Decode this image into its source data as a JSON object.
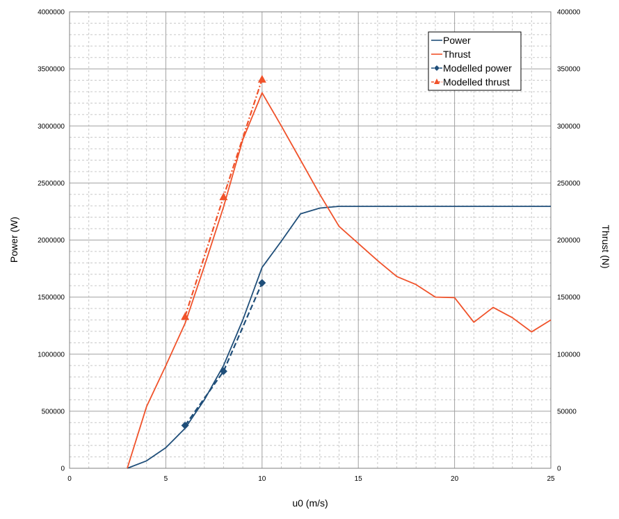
{
  "chart_data": {
    "type": "line",
    "xlabel": "u0 (m/s)",
    "ylabel_left": "Power (W)",
    "ylabel_right": "Thrust (N)",
    "xlim": [
      0,
      25
    ],
    "ylim_left": [
      0,
      4000000
    ],
    "ylim_right": [
      0,
      400000
    ],
    "x_ticks": [
      "0",
      "5",
      "10",
      "15",
      "20",
      "25"
    ],
    "y_left_ticks": [
      "0",
      "500000",
      "1000000",
      "1500000",
      "2000000",
      "2500000",
      "3000000",
      "3500000",
      "4000000"
    ],
    "y_right_ticks": [
      "0",
      "50000",
      "100000",
      "150000",
      "200000",
      "250000",
      "300000",
      "350000",
      "400000"
    ],
    "grid": true,
    "legend_position": "top-right",
    "series": [
      {
        "name": "Power",
        "axis": "left",
        "style": "solid",
        "marker": "none",
        "color": "#1f4e79",
        "x": [
          3,
          4,
          5,
          6,
          7,
          8,
          9,
          10,
          11,
          12,
          13,
          14,
          15,
          16,
          17,
          18,
          19,
          20,
          21,
          22,
          23,
          24,
          25
        ],
        "y": [
          0,
          65000,
          180000,
          350000,
          600000,
          900000,
          1300000,
          1760000,
          1990000,
          2230000,
          2280000,
          2295000,
          2295000,
          2295000,
          2295000,
          2295000,
          2295000,
          2295000,
          2295000,
          2295000,
          2295000,
          2295000,
          2295000
        ]
      },
      {
        "name": "Thrust",
        "axis": "right",
        "style": "solid",
        "marker": "none",
        "color": "#f0522a",
        "x": [
          3,
          4,
          5,
          6,
          7,
          8,
          9,
          10,
          11,
          12,
          13,
          14,
          15,
          16,
          17,
          18,
          19,
          20,
          21,
          22,
          23,
          24,
          25
        ],
        "y": [
          0,
          54000,
          90000,
          127000,
          177000,
          229000,
          288000,
          329000,
          300000,
          270000,
          240000,
          212000,
          197000,
          182000,
          168000,
          161000,
          150000,
          149500,
          128000,
          141000,
          132000,
          119500,
          130000
        ]
      },
      {
        "name": "Modelled power",
        "axis": "left",
        "style": "dashed",
        "marker": "diamond",
        "color": "#1f4e79",
        "x": [
          6,
          8,
          10
        ],
        "y": [
          375000,
          850000,
          1625000
        ]
      },
      {
        "name": "Modelled thrust",
        "axis": "right",
        "style": "dashdot",
        "marker": "triangle",
        "color": "#f0522a",
        "x": [
          6,
          8,
          10
        ],
        "y": [
          133000,
          238000,
          341000
        ]
      }
    ]
  }
}
